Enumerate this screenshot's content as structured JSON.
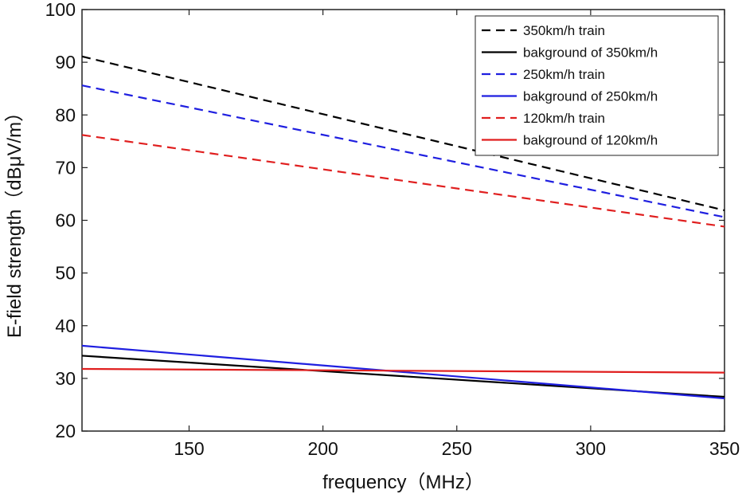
{
  "chart_data": {
    "type": "line",
    "xlabel": "frequency（MHz）",
    "ylabel": "E-field strength（dBμV/m）",
    "xlim": [
      110,
      350
    ],
    "ylim": [
      20,
      100
    ],
    "xticks": [
      150,
      200,
      250,
      300,
      350
    ],
    "yticks": [
      20,
      30,
      40,
      50,
      60,
      70,
      80,
      90,
      100
    ],
    "legend_position": "top-right",
    "series": [
      {
        "name": "350km/h train",
        "color": "#000000",
        "dash": true,
        "x": [
          110,
          350
        ],
        "y": [
          91.1,
          61.9
        ]
      },
      {
        "name": "bakground of 350km/h",
        "color": "#000000",
        "dash": false,
        "x": [
          110,
          350
        ],
        "y": [
          34.3,
          26.5
        ]
      },
      {
        "name": "250km/h train",
        "color": "#1f1fe0",
        "dash": true,
        "x": [
          110,
          350
        ],
        "y": [
          85.6,
          60.6
        ]
      },
      {
        "name": "bakground of 250km/h",
        "color": "#1f1fe0",
        "dash": false,
        "x": [
          110,
          350
        ],
        "y": [
          36.2,
          26.2
        ]
      },
      {
        "name": "120km/h train",
        "color": "#e01f1f",
        "dash": true,
        "x": [
          110,
          350
        ],
        "y": [
          76.2,
          58.8
        ]
      },
      {
        "name": "bakground of 120km/h",
        "color": "#e01f1f",
        "dash": false,
        "x": [
          110,
          350
        ],
        "y": [
          31.8,
          31.1
        ]
      }
    ]
  }
}
